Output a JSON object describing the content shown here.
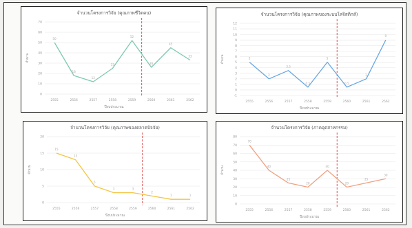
{
  "chart_data": [
    {
      "type": "line",
      "title": "จำนวนโครงการวิจัย (คุณภาพชีวิตคน)",
      "xlabel": "ปีงบประมาณ",
      "ylabel": "จำนวน",
      "x": [
        "2555",
        "2556",
        "2557",
        "2558",
        "2559",
        "2560",
        "2561",
        "2562"
      ],
      "values": [
        50,
        18,
        12,
        25,
        52,
        26,
        45,
        33
      ],
      "ylim": [
        0,
        70
      ],
      "yticks": [
        0,
        10,
        20,
        30,
        40,
        50,
        60,
        70
      ],
      "color": "#7ec8b2",
      "vline_at": "2559.5",
      "vline_color": "#e05050",
      "grid": true
    },
    {
      "type": "line",
      "title": "จำนวนโครงการวิจัย (คุณภาพของระบบโลจิสติกส์)",
      "xlabel": "ปีงบประมาณ",
      "ylabel": "จำนวน",
      "x": [
        "2555",
        "2556",
        "2557",
        "2558",
        "2559",
        "2560",
        "2561",
        "2562"
      ],
      "values": [
        5,
        2,
        3.5,
        0.5,
        5,
        0.5,
        2,
        9
      ],
      "ylim": [
        -1,
        12
      ],
      "yticks": [
        -1,
        0,
        1,
        2,
        3,
        4,
        5,
        6,
        7,
        8,
        9,
        10,
        11,
        12
      ],
      "color": "#6aa7e0",
      "vline_at": "2559.5",
      "vline_color": "#e05050",
      "grid": true
    },
    {
      "type": "line",
      "title": "จำนวนโครงการวิจัย (คุณภาพของตลาดปัจจัย)",
      "xlabel": "ปีงบประมาณ",
      "ylabel": "จำนวน",
      "x": [
        "2555",
        "2556",
        "2557",
        "2558",
        "2559",
        "2560",
        "2561",
        "2562"
      ],
      "values": [
        15,
        13,
        5,
        3,
        3,
        2,
        1,
        1
      ],
      "ylim": [
        0,
        20
      ],
      "yticks": [
        0,
        5,
        10,
        15,
        20
      ],
      "color": "#f4c542",
      "vline_at": "2559.5",
      "vline_color": "#e05050",
      "grid": true
    },
    {
      "type": "line",
      "title": "จำนวนโครงการวิจัย (ภาคอุตสาหกรรม)",
      "xlabel": "ปีงบประมาณ",
      "ylabel": "จำนวน",
      "x": [
        "2555",
        "2556",
        "2557",
        "2558",
        "2559",
        "2560",
        "2561",
        "2562"
      ],
      "values": [
        70,
        40,
        25,
        20,
        40,
        20,
        25,
        30
      ],
      "ylim": [
        0,
        80
      ],
      "yticks": [
        0,
        10,
        20,
        30,
        40,
        50,
        60,
        70,
        80
      ],
      "color": "#f0a080",
      "vline_at": "2559.5",
      "vline_color": "#e05050",
      "grid": true
    }
  ]
}
